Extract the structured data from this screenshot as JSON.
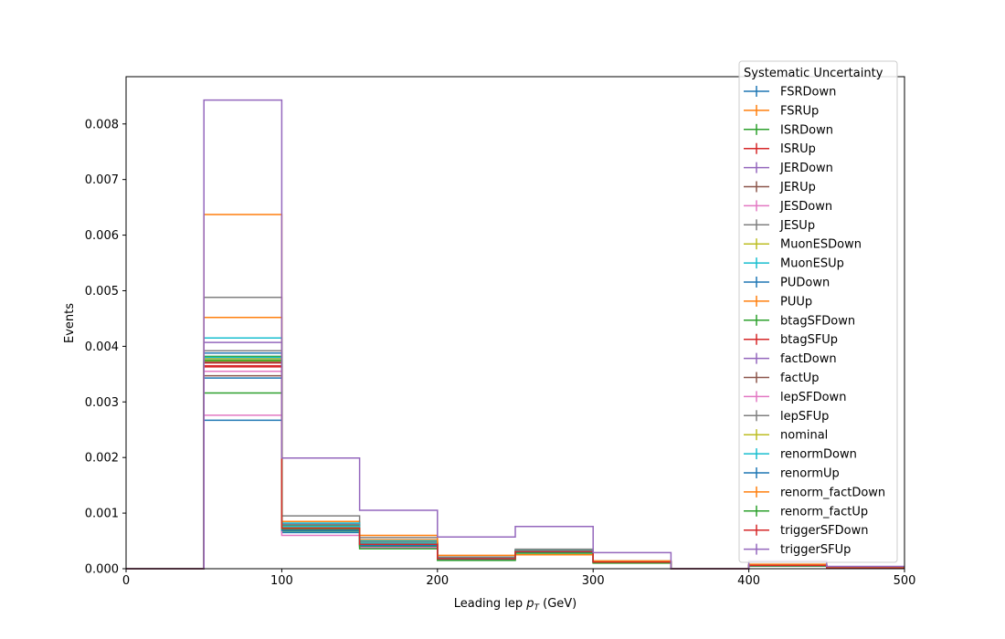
{
  "chart_data": {
    "type": "line",
    "drawstyle": "steps",
    "xlabel_prefix": "Leading lep ",
    "xlabel_symbol": "p",
    "xlabel_subscript": "T",
    "xlabel_suffix": " (GeV)",
    "ylabel": "Events",
    "xlim": [
      0,
      500
    ],
    "ylim": [
      0,
      0.00885
    ],
    "xticks": [
      0,
      100,
      200,
      300,
      400,
      500
    ],
    "xtick_labels": [
      "0",
      "100",
      "200",
      "300",
      "400",
      "500"
    ],
    "yticks": [
      0,
      0.001,
      0.002,
      0.003,
      0.004,
      0.005,
      0.006,
      0.007,
      0.008
    ],
    "ytick_labels": [
      "0.000",
      "0.001",
      "0.002",
      "0.003",
      "0.004",
      "0.005",
      "0.006",
      "0.007",
      "0.008"
    ],
    "grid": false,
    "legend_title": "Systematic Uncertainty",
    "legend_position": "upper right",
    "bin_edges": [
      0,
      50,
      100,
      150,
      200,
      250,
      300,
      350,
      400,
      450,
      500
    ],
    "series": [
      {
        "name": "FSRDown",
        "color": "#1f77b4",
        "values": [
          0,
          0.00267,
          0.00065,
          0.0004,
          0.00017,
          0.0003,
          0.00011,
          0,
          5e-05,
          1e-05
        ]
      },
      {
        "name": "FSRUp",
        "color": "#ff7f0e",
        "values": [
          0,
          0.00452,
          0.00085,
          0.00052,
          0.0002,
          0.00033,
          0.00013,
          0,
          7e-05,
          2e-05
        ]
      },
      {
        "name": "ISRDown",
        "color": "#2ca02c",
        "values": [
          0,
          0.00316,
          0.00068,
          0.00041,
          0.00017,
          0.00031,
          0.00012,
          0,
          6e-05,
          1e-05
        ]
      },
      {
        "name": "ISRUp",
        "color": "#d62728",
        "values": [
          0,
          0.0037,
          0.00075,
          0.00046,
          0.00018,
          0.00032,
          0.00012,
          0,
          6e-05,
          1e-05
        ]
      },
      {
        "name": "JERDown",
        "color": "#9467bd",
        "values": [
          0,
          0.00407,
          0.0008,
          0.00049,
          0.00019,
          0.00033,
          0.00013,
          0,
          6e-05,
          1e-05
        ]
      },
      {
        "name": "JERUp",
        "color": "#8c564b",
        "values": [
          0,
          0.00347,
          0.0007,
          0.00043,
          0.00018,
          0.00031,
          0.00012,
          0,
          6e-05,
          1e-05
        ]
      },
      {
        "name": "JESDown",
        "color": "#e377c2",
        "values": [
          0,
          0.00276,
          0.0006,
          0.00038,
          0.00016,
          0.00029,
          0.00011,
          0,
          5e-05,
          1e-05
        ]
      },
      {
        "name": "JESUp",
        "color": "#7f7f7f",
        "values": [
          0,
          0.00488,
          0.00095,
          0.00056,
          0.00021,
          0.00035,
          0.00014,
          0,
          7e-05,
          2e-05
        ]
      },
      {
        "name": "MuonESDown",
        "color": "#bcbd22",
        "values": [
          0,
          0.00378,
          0.00076,
          0.00046,
          0.00018,
          0.00032,
          0.00012,
          0,
          6e-05,
          1e-05
        ]
      },
      {
        "name": "MuonESUp",
        "color": "#17becf",
        "values": [
          0,
          0.00415,
          0.00082,
          0.0005,
          0.00019,
          0.00033,
          0.00013,
          0,
          6e-05,
          1e-05
        ]
      },
      {
        "name": "PUDown",
        "color": "#1f77b4",
        "values": [
          0,
          0.00388,
          0.00078,
          0.00047,
          0.00019,
          0.00032,
          0.00012,
          0,
          6e-05,
          1e-05
        ]
      },
      {
        "name": "PUUp",
        "color": "#ff7f0e",
        "values": [
          0,
          0.00365,
          0.00074,
          0.00045,
          0.00018,
          0.00032,
          0.00012,
          0,
          6e-05,
          1e-05
        ]
      },
      {
        "name": "btagSFDown",
        "color": "#2ca02c",
        "values": [
          0,
          0.00382,
          0.00077,
          0.00047,
          0.00018,
          0.00032,
          0.00012,
          0,
          6e-05,
          1e-05
        ]
      },
      {
        "name": "btagSFUp",
        "color": "#d62728",
        "values": [
          0,
          0.00365,
          0.00074,
          0.00045,
          0.00018,
          0.00031,
          0.00012,
          0,
          6e-05,
          1e-05
        ]
      },
      {
        "name": "factDown",
        "color": "#9467bd",
        "values": [
          0,
          0.00375,
          0.00076,
          0.00046,
          0.00018,
          0.00032,
          0.00012,
          0,
          6e-05,
          1e-05
        ]
      },
      {
        "name": "factUp",
        "color": "#8c564b",
        "values": [
          0,
          0.00372,
          0.00075,
          0.00046,
          0.00018,
          0.00032,
          0.00012,
          0,
          6e-05,
          1e-05
        ]
      },
      {
        "name": "lepSFDown",
        "color": "#e377c2",
        "values": [
          0,
          0.00355,
          0.00072,
          0.00044,
          0.00018,
          0.00031,
          0.00012,
          0,
          6e-05,
          1e-05
        ]
      },
      {
        "name": "lepSFUp",
        "color": "#7f7f7f",
        "values": [
          0,
          0.00392,
          0.00079,
          0.00048,
          0.00019,
          0.00033,
          0.00013,
          0,
          6e-05,
          1e-05
        ]
      },
      {
        "name": "nominal",
        "color": "#bcbd22",
        "values": [
          0,
          0.00374,
          0.00075,
          0.00046,
          0.00018,
          0.00032,
          0.00012,
          0,
          6e-05,
          1e-05
        ]
      },
      {
        "name": "renormDown",
        "color": "#17becf",
        "values": [
          0,
          0.0038,
          0.00076,
          0.00046,
          0.00018,
          0.00032,
          0.00012,
          0,
          6e-05,
          1e-05
        ]
      },
      {
        "name": "renormUp",
        "color": "#1f77b4",
        "values": [
          0,
          0.00343,
          0.00069,
          0.00042,
          0.00017,
          0.0003,
          0.00011,
          0,
          5e-05,
          1e-05
        ]
      },
      {
        "name": "renorm_factDown",
        "color": "#ff7f0e",
        "values": [
          0,
          0.00637,
          0.00072,
          0.0006,
          0.00024,
          0.00025,
          0.00014,
          0,
          8e-05,
          2e-05
        ]
      },
      {
        "name": "renorm_factUp",
        "color": "#2ca02c",
        "values": [
          0,
          0.00375,
          0.00072,
          0.00036,
          0.00015,
          0.00028,
          0.0001,
          0,
          5e-05,
          1e-05
        ]
      },
      {
        "name": "triggerSFDown",
        "color": "#d62728",
        "values": [
          0,
          0.00363,
          0.00073,
          0.00044,
          0.00018,
          0.00031,
          0.00012,
          0,
          6e-05,
          1e-05
        ]
      },
      {
        "name": "triggerSFUp",
        "color": "#9467bd",
        "values": [
          0,
          0.00843,
          0.00199,
          0.00105,
          0.00057,
          0.00076,
          0.00029,
          0,
          0.00014,
          4e-05
        ]
      }
    ]
  }
}
